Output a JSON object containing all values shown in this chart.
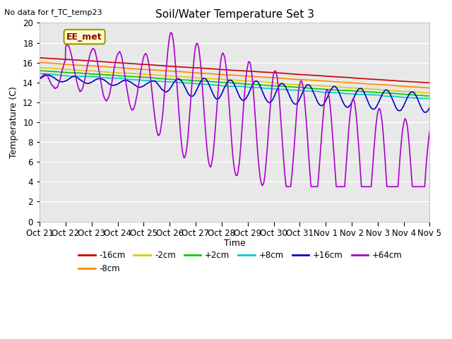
{
  "title": "Soil/Water Temperature Set 3",
  "subtitle": "No data for f_TC_temp23",
  "xlabel": "Time",
  "ylabel": "Temperature (C)",
  "ylim": [
    0,
    20
  ],
  "annotation": "EE_met",
  "x_labels": [
    "Oct 21",
    "Oct 22",
    "Oct 23",
    "Oct 24",
    "Oct 25",
    "Oct 26",
    "Oct 27",
    "Oct 28",
    "Oct 29",
    "Oct 30",
    "Oct 31",
    "Nov 1",
    "Nov 2",
    "Nov 3",
    "Nov 4",
    "Nov 5"
  ],
  "series": {
    "-16cm": {
      "color": "#cc0000"
    },
    "-8cm": {
      "color": "#ff8800"
    },
    "-2cm": {
      "color": "#ddcc00"
    },
    "+2cm": {
      "color": "#00cc00"
    },
    "+8cm": {
      "color": "#00cccc"
    },
    "+16cm": {
      "color": "#0000cc"
    },
    "+64cm": {
      "color": "#aa00cc"
    }
  },
  "bg_color": "#e8e8e8",
  "fig_width": 6.4,
  "fig_height": 4.8,
  "dpi": 100
}
